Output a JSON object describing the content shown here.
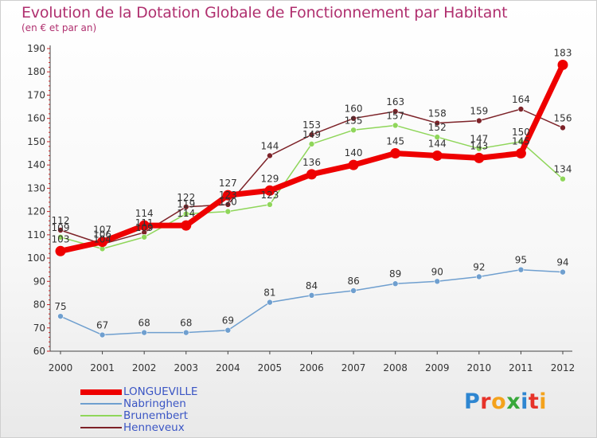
{
  "title": "Evolution de la Dotation Globale de Fonctionnement par Habitant",
  "subtitle": "(en € et par an)",
  "logo_text": "Proxiti",
  "chart_data": {
    "type": "line",
    "x": [
      2000,
      2001,
      2002,
      2003,
      2004,
      2005,
      2006,
      2007,
      2008,
      2009,
      2010,
      2011,
      2012
    ],
    "ylim": [
      60,
      190
    ],
    "yticks": [
      60,
      70,
      80,
      90,
      100,
      110,
      120,
      130,
      140,
      150,
      160,
      170,
      180,
      190
    ],
    "grid": false,
    "legend_position": "bottom-left",
    "series": [
      {
        "name": "Henneveux",
        "color": "#7d2228",
        "values": [
          112,
          106,
          111,
          122,
          123,
          144,
          153,
          160,
          163,
          158,
          159,
          164,
          156
        ]
      },
      {
        "name": "Brunembert",
        "color": "#8fd65a",
        "values": [
          109,
          104,
          109,
          119,
          120,
          123,
          149,
          155,
          157,
          152,
          147,
          150,
          134
        ]
      },
      {
        "name": "Nabringhen",
        "color": "#6f9fcf",
        "values": [
          75,
          67,
          68,
          68,
          69,
          81,
          84,
          86,
          89,
          90,
          92,
          95,
          94
        ]
      },
      {
        "name": "LONGUEVILLE",
        "color": "#ee0000",
        "values": [
          103,
          107,
          114,
          114,
          127,
          129,
          136,
          140,
          145,
          144,
          143,
          145,
          183
        ]
      }
    ],
    "legend": [
      "LONGUEVILLE",
      "Nabringhen",
      "Brunembert",
      "Henneveux"
    ]
  }
}
